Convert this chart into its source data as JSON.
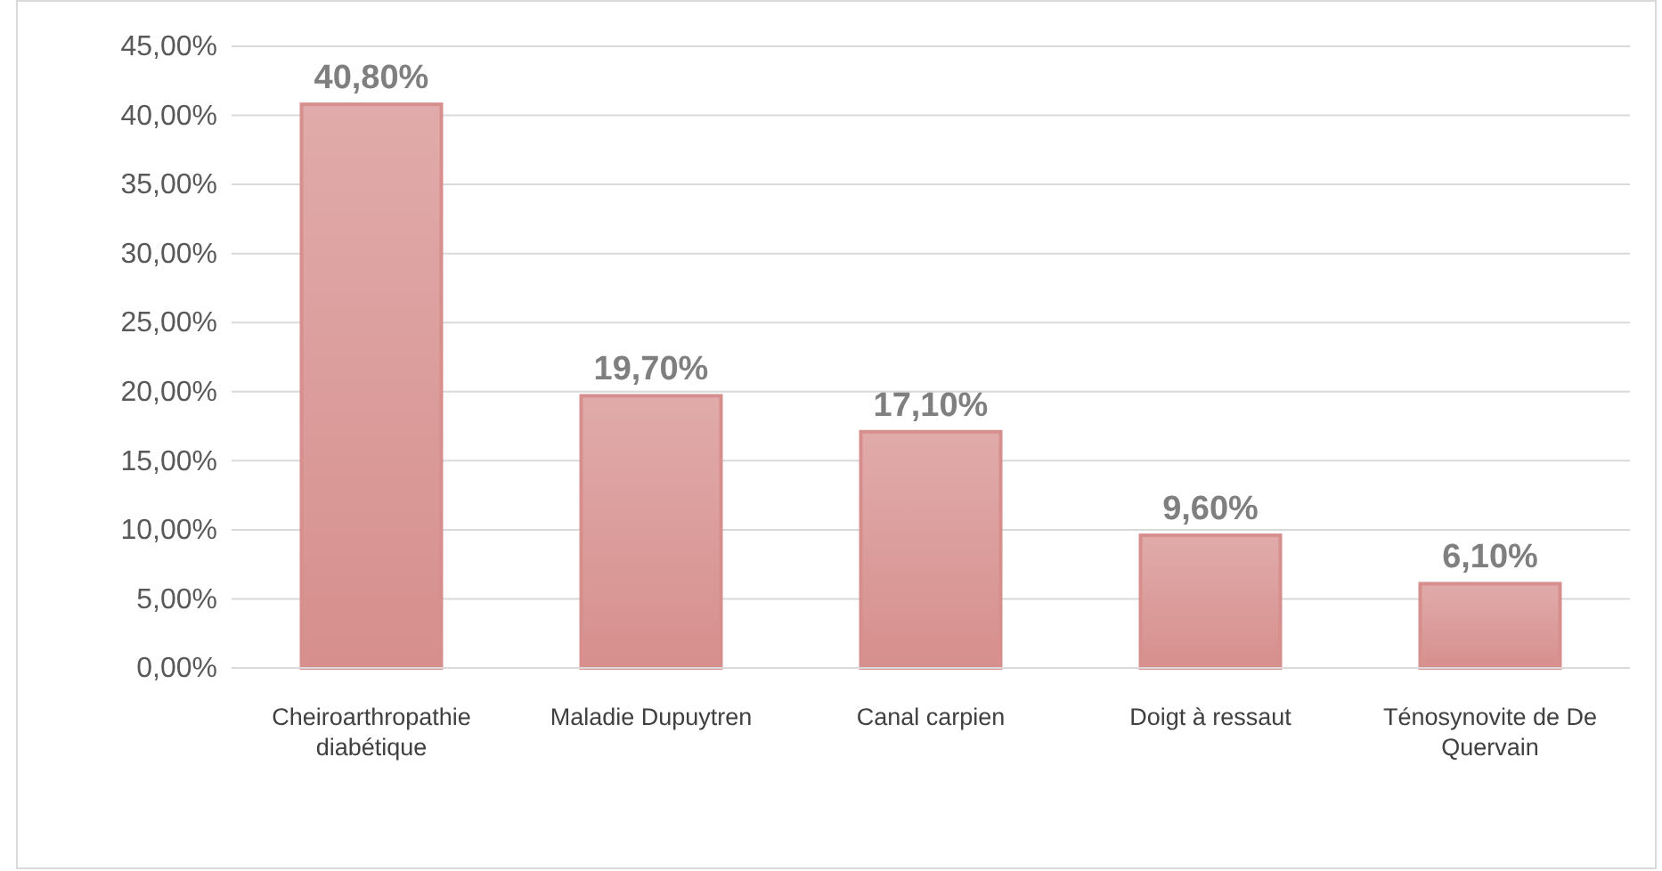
{
  "chart_data": {
    "type": "bar",
    "categories": [
      "Cheiroarthropathie diabétique",
      "Maladie Dupuytren",
      "Canal carpien",
      "Doigt à ressaut",
      "Ténosynovite de De Quervain"
    ],
    "values": [
      40.8,
      19.7,
      17.1,
      9.6,
      6.1
    ],
    "value_labels": [
      "40,80%",
      "19,70%",
      "17,10%",
      "9,60%",
      "6,10%"
    ],
    "color": "#d68f8d",
    "ylim": [
      0,
      45
    ],
    "yticks": [
      {
        "value": 0,
        "label": "0,00%"
      },
      {
        "value": 5,
        "label": "5,00%"
      },
      {
        "value": 10,
        "label": "10,00%"
      },
      {
        "value": 15,
        "label": "15,00%"
      },
      {
        "value": 20,
        "label": "20,00%"
      },
      {
        "value": 25,
        "label": "25,00%"
      },
      {
        "value": 30,
        "label": "30,00%"
      },
      {
        "value": 35,
        "label": "35,00%"
      },
      {
        "value": 40,
        "label": "40,00%"
      },
      {
        "value": 45,
        "label": "45,00%"
      }
    ],
    "grid": "y"
  }
}
